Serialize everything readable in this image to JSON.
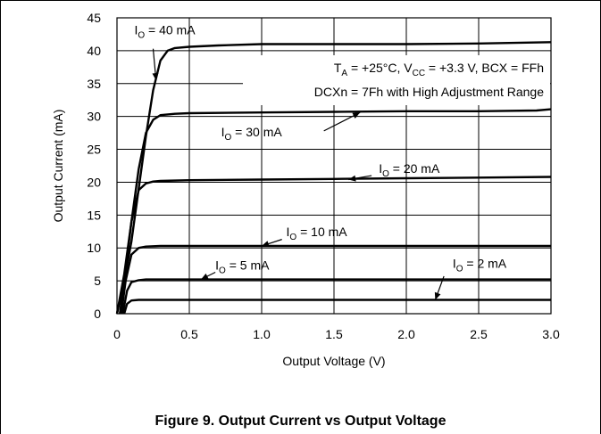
{
  "chart_data": {
    "type": "line",
    "caption": "Figure 9. Output Current vs Output Voltage",
    "xlabel": "Output Voltage (V)",
    "ylabel": "Output Current (mA)",
    "xlim": [
      0,
      3.0
    ],
    "ylim": [
      0,
      45
    ],
    "x_ticks": [
      "0",
      "0.5",
      "1.0",
      "1.5",
      "2.0",
      "2.5",
      "3.0"
    ],
    "y_ticks": [
      "0",
      "5",
      "10",
      "15",
      "20",
      "25",
      "30",
      "35",
      "40",
      "45"
    ],
    "grid": true,
    "conditions_line1": {
      "t": "T",
      "t_sub": "A",
      "t_val": " = +25°C, V",
      "v_sub": "CC",
      "rest": " = +3.3 V, BCX = FFh"
    },
    "conditions_line2": "DCXn = 7Fh with High Adjustment Range",
    "series": [
      {
        "name": "IO = 40 mA",
        "label_sub": "O",
        "label_prefix": "I",
        "label_suffix": " = 40 mA",
        "x": [
          0.0,
          0.05,
          0.1,
          0.15,
          0.2,
          0.25,
          0.3,
          0.35,
          0.4,
          0.5,
          0.7,
          1.0,
          1.5,
          2.0,
          2.5,
          3.0
        ],
        "y": [
          0,
          5,
          11,
          19,
          27,
          34,
          38.5,
          40,
          40.4,
          40.6,
          40.8,
          41.0,
          41.0,
          41.0,
          41.1,
          41.3
        ]
      },
      {
        "name": "IO = 30 mA",
        "label_sub": "O",
        "label_prefix": "I",
        "label_suffix": " = 30 mA",
        "x": [
          0.0,
          0.05,
          0.1,
          0.15,
          0.2,
          0.25,
          0.3,
          0.4,
          0.5,
          1.0,
          1.5,
          2.0,
          2.5,
          2.9,
          3.0
        ],
        "y": [
          0,
          6,
          14,
          22,
          27.5,
          29.5,
          30.2,
          30.4,
          30.5,
          30.6,
          30.7,
          30.8,
          30.8,
          30.9,
          31.1
        ]
      },
      {
        "name": "IO = 20 mA",
        "label_sub": "O",
        "label_prefix": "I",
        "label_suffix": " = 20 mA",
        "x": [
          0.02,
          0.05,
          0.1,
          0.15,
          0.2,
          0.25,
          0.3,
          0.5,
          1.0,
          1.5,
          2.0,
          2.5,
          3.0
        ],
        "y": [
          0,
          5,
          14,
          18.8,
          19.8,
          20.1,
          20.2,
          20.3,
          20.4,
          20.5,
          20.6,
          20.7,
          20.8
        ]
      },
      {
        "name": "IO = 10 mA",
        "label_sub": "O",
        "label_prefix": "I",
        "label_suffix": " = 10 mA",
        "x": [
          0.03,
          0.06,
          0.1,
          0.15,
          0.2,
          0.3,
          0.5,
          1.0,
          2.0,
          3.0
        ],
        "y": [
          0,
          5,
          9,
          10.0,
          10.2,
          10.3,
          10.3,
          10.3,
          10.3,
          10.3
        ]
      },
      {
        "name": "IO = 5 mA",
        "label_sub": "O",
        "label_prefix": "I",
        "label_suffix": " = 5 mA",
        "x": [
          0.04,
          0.07,
          0.1,
          0.15,
          0.2,
          0.5,
          1.0,
          2.0,
          3.0
        ],
        "y": [
          0,
          3.5,
          4.8,
          5.1,
          5.2,
          5.2,
          5.2,
          5.2,
          5.2
        ]
      },
      {
        "name": "IO = 2 mA",
        "label_sub": "O",
        "label_prefix": "I",
        "label_suffix": " = 2 mA",
        "x": [
          0.05,
          0.07,
          0.1,
          0.15,
          0.2,
          1.0,
          2.0,
          3.0
        ],
        "y": [
          0,
          1.5,
          2.0,
          2.1,
          2.1,
          2.1,
          2.1,
          2.1
        ]
      }
    ]
  }
}
